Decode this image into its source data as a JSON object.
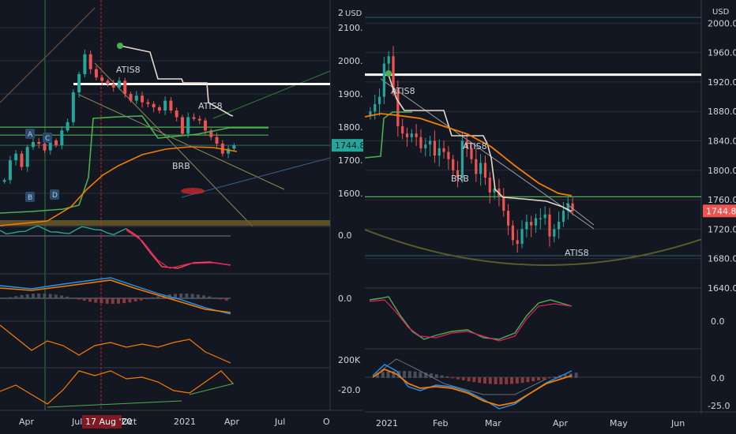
{
  "currency": "USD",
  "colors": {
    "background": "#131722",
    "up": "#26a69a",
    "down": "#ef5350",
    "ma_orange": "#f57c00",
    "green_line": "#4caf50",
    "white_line": "#ffffff",
    "grid": "#2a2e39"
  },
  "chart_data": [
    {
      "type": "candlestick",
      "pane": "left",
      "y_axis_label": "USD",
      "ylim": [
        1500,
        2160
      ],
      "y_ticks": [
        "2100.0",
        "2000.0",
        "1900.0",
        "1800.0",
        "1700.0",
        "1600.0"
      ],
      "top_tick": "2",
      "x_ticks": [
        "Apr",
        "Jul",
        "Oct",
        "2021",
        "Apr",
        "Jul",
        "O"
      ],
      "highlight_date": "17 Aug '20",
      "last_price": "1744.8",
      "annotations": [
        "ATIS8",
        "ATIS8",
        "BRB",
        "A",
        "B",
        "C",
        "D"
      ],
      "horizontal_levels": [
        1930,
        1800,
        1776
      ],
      "series": [
        {
          "name": "price",
          "values": [
            1640,
            1700,
            1720,
            1680,
            1740,
            1755,
            1750,
            1730,
            1760,
            1745,
            1790,
            1815,
            1905,
            1960,
            2020,
            1975,
            1950,
            1940,
            1930,
            1920,
            1940,
            1900,
            1880,
            1895,
            1875,
            1870,
            1860,
            1850,
            1880,
            1850,
            1830,
            1780,
            1830,
            1825,
            1820,
            1790,
            1770,
            1750,
            1720,
            1735,
            1745
          ]
        }
      ],
      "indicators": {
        "oscillator_1_tick": "0.0",
        "oscillator_2_tick": "0.0",
        "volume_tick": "200K",
        "oscillator_4_tick": "-20.0"
      }
    },
    {
      "type": "candlestick",
      "pane": "right",
      "y_axis_label": "USD",
      "ylim": [
        1640,
        2010
      ],
      "y_ticks": [
        "2000.0",
        "1960.0",
        "1920.0",
        "1880.0",
        "1840.0",
        "1800.0",
        "1760.0",
        "1720.0",
        "1680.0",
        "1640.0"
      ],
      "x_ticks": [
        "2021",
        "Feb",
        "Mar",
        "Apr",
        "May",
        "Jun"
      ],
      "last_price": "1744.8",
      "annotations": [
        "ATIS8",
        "ATIS8",
        "BRB",
        "ATIS8"
      ],
      "horizontal_levels": [
        1930,
        1764
      ],
      "series": [
        {
          "name": "price",
          "values": [
            1880,
            1890,
            1900,
            1945,
            1955,
            1910,
            1860,
            1850,
            1845,
            1850,
            1845,
            1830,
            1835,
            1840,
            1820,
            1830,
            1825,
            1815,
            1800,
            1790,
            1840,
            1830,
            1815,
            1795,
            1810,
            1790,
            1770,
            1775,
            1765,
            1745,
            1725,
            1705,
            1700,
            1720,
            1730,
            1725,
            1735,
            1735,
            1740,
            1710,
            1720,
            1730,
            1745,
            1755,
            1744.8
          ]
        }
      ],
      "indicators": {
        "oscillator_1_tick": "0.0",
        "oscillator_2_tick_top": "0.0",
        "oscillator_2_tick_bottom": "-25.0"
      }
    }
  ]
}
